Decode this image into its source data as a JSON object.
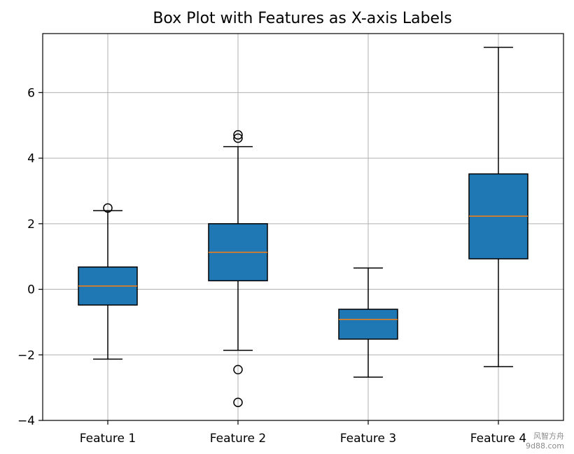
{
  "chart_data": {
    "type": "box",
    "title": "Box Plot with Features as X-axis Labels",
    "xlabel": "",
    "ylabel": "",
    "ylim": [
      -4,
      7.8
    ],
    "yticks": [
      -4,
      -2,
      0,
      2,
      4,
      6
    ],
    "ytick_labels": [
      "−4",
      "−2",
      "0",
      "2",
      "4",
      "6"
    ],
    "grid": true,
    "box_color": "#1f77b4",
    "median_color": "#ff7f0e",
    "categories": [
      "Feature 1",
      "Feature 2",
      "Feature 3",
      "Feature 4"
    ],
    "boxes": [
      {
        "label": "Feature 1",
        "whisker_low": -2.13,
        "q1": -0.48,
        "median": 0.1,
        "q3": 0.68,
        "whisker_high": 2.4,
        "outliers": [
          2.48
        ]
      },
      {
        "label": "Feature 2",
        "whisker_low": -1.86,
        "q1": 0.26,
        "median": 1.13,
        "q3": 2.0,
        "whisker_high": 4.35,
        "outliers": [
          4.61,
          4.71,
          -2.45,
          -3.45
        ]
      },
      {
        "label": "Feature 3",
        "whisker_low": -2.68,
        "q1": -1.52,
        "median": -0.92,
        "q3": -0.61,
        "whisker_high": 0.65,
        "outliers": []
      },
      {
        "label": "Feature 4",
        "whisker_low": -2.36,
        "q1": 0.93,
        "median": 2.23,
        "q3": 3.52,
        "whisker_high": 7.38,
        "outliers": []
      }
    ]
  },
  "watermark": {
    "line1": "风智方舟",
    "line2": "9d88.com"
  }
}
